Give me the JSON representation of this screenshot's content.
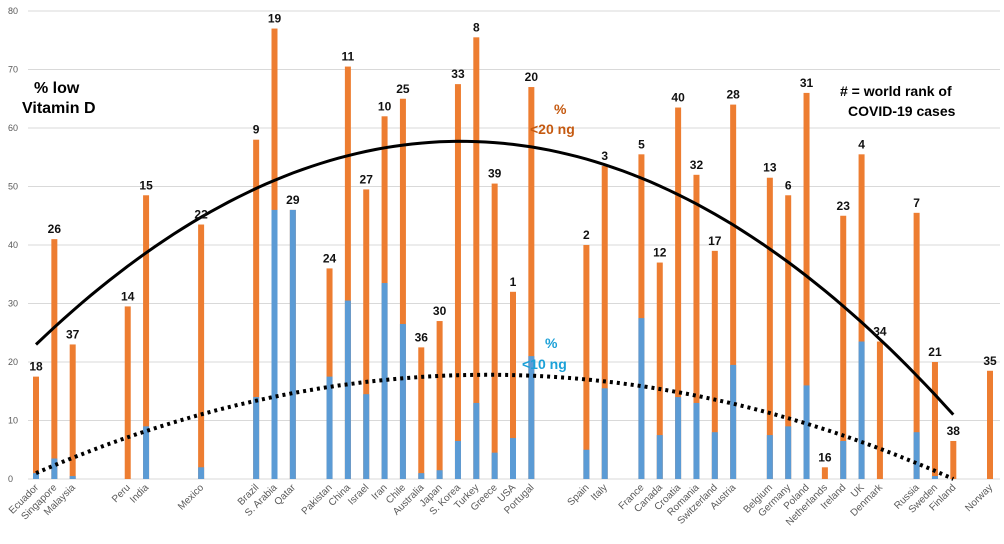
{
  "chart_data": {
    "type": "bar",
    "ylim": [
      0,
      80
    ],
    "yticks": [
      0,
      10,
      20,
      30,
      40,
      50,
      60,
      70,
      80
    ],
    "grid": "horizontal",
    "colors": {
      "low20": "#ED7D31",
      "low10": "#5B9BD5",
      "grid": "#D9D9D9",
      "trend": "#000000"
    },
    "annotations": {
      "ylabel_line1": "% low",
      "ylabel_line2": "Vitamin D",
      "rank_note_line1": "# = world rank of",
      "rank_note_line2": "COVID-19 cases",
      "series20_line1": "%",
      "series20_line2": "<20 ng",
      "series10_line1": "%",
      "series10_line2": "<10 ng"
    },
    "trend_20": {
      "x": [
        0,
        50,
        100
      ],
      "y": [
        23,
        57.5,
        11
      ]
    },
    "trend_10": {
      "x": [
        0,
        48,
        100
      ],
      "y": [
        1,
        17.8,
        0
      ]
    },
    "countries": [
      {
        "name": "Ecuador",
        "x": 0,
        "low20": 17.5,
        "low10": 1,
        "rank": "18"
      },
      {
        "name": "Singapore",
        "x": 2,
        "low20": 41,
        "low10": 3.5,
        "rank": "26"
      },
      {
        "name": "Malaysia",
        "x": 4,
        "low20": 23,
        "low10": 0.5,
        "rank": "37"
      },
      {
        "name": "Peru",
        "x": 10,
        "low20": 29.5,
        "low10": 0,
        "rank": "14"
      },
      {
        "name": "India",
        "x": 12,
        "low20": 48.5,
        "low10": 9,
        "rank": "15"
      },
      {
        "name": "Mexico",
        "x": 18,
        "low20": 43.5,
        "low10": 2,
        "rank": "22"
      },
      {
        "name": "Brazil",
        "x": 24,
        "low20": 58,
        "low10": 14,
        "rank": "9"
      },
      {
        "name": "S. Arabia",
        "x": 26,
        "low20": 77,
        "low10": 46,
        "rank": "19"
      },
      {
        "name": "Qatar",
        "x": 28,
        "low20": 46,
        "low10": 46,
        "rank": "29"
      },
      {
        "name": "Pakistan",
        "x": 32,
        "low20": 36,
        "low10": 17.5,
        "rank": "24"
      },
      {
        "name": "China",
        "x": 34,
        "low20": 70.5,
        "low10": 30.5,
        "rank": "11"
      },
      {
        "name": "Israel",
        "x": 36,
        "low20": 49.5,
        "low10": 14.5,
        "rank": "27"
      },
      {
        "name": "Iran",
        "x": 38,
        "low20": 62,
        "low10": 33.5,
        "rank": "10"
      },
      {
        "name": "Chile",
        "x": 40,
        "low20": 65,
        "low10": 26.5,
        "rank": "25"
      },
      {
        "name": "Australia",
        "x": 42,
        "low20": 22.5,
        "low10": 1,
        "rank": "36"
      },
      {
        "name": "Japan",
        "x": 44,
        "low20": 27,
        "low10": 1.5,
        "rank": "30"
      },
      {
        "name": "S. Korea",
        "x": 46,
        "low20": 67.5,
        "low10": 6.5,
        "rank": "33"
      },
      {
        "name": "Turkey",
        "x": 48,
        "low20": 75.5,
        "low10": 13,
        "rank": "8"
      },
      {
        "name": "Greece",
        "x": 50,
        "low20": 50.5,
        "low10": 4.5,
        "rank": "39"
      },
      {
        "name": "USA",
        "x": 52,
        "low20": 32,
        "low10": 7,
        "rank": "1"
      },
      {
        "name": "Portugal",
        "x": 54,
        "low20": 67,
        "low10": 21,
        "rank": "20"
      },
      {
        "name": "Spain",
        "x": 60,
        "low20": 40,
        "low10": 5,
        "rank": "2"
      },
      {
        "name": "Italy",
        "x": 62,
        "low20": 53.5,
        "low10": 15.5,
        "rank": "3"
      },
      {
        "name": "France",
        "x": 66,
        "low20": 55.5,
        "low10": 27.5,
        "rank": "5"
      },
      {
        "name": "Canada",
        "x": 68,
        "low20": 37,
        "low10": 7.5,
        "rank": "12"
      },
      {
        "name": "Croatia",
        "x": 70,
        "low20": 63.5,
        "low10": 14,
        "rank": "40"
      },
      {
        "name": "Romania",
        "x": 72,
        "low20": 52,
        "low10": 13,
        "rank": "32"
      },
      {
        "name": "Switzerland",
        "x": 74,
        "low20": 39,
        "low10": 8,
        "rank": "17"
      },
      {
        "name": "Austria",
        "x": 76,
        "low20": 64,
        "low10": 19.5,
        "rank": "28"
      },
      {
        "name": "Belgium",
        "x": 80,
        "low20": 51.5,
        "low10": 7.5,
        "rank": "13"
      },
      {
        "name": "Germany",
        "x": 82,
        "low20": 48.5,
        "low10": 9,
        "rank": "6"
      },
      {
        "name": "Poland",
        "x": 84,
        "low20": 66,
        "low10": 16,
        "rank": "31"
      },
      {
        "name": "Netherlands",
        "x": 86,
        "low20": 2,
        "low10": 0,
        "rank": "16"
      },
      {
        "name": "Ireland",
        "x": 88,
        "low20": 45,
        "low10": 6.5,
        "rank": "23"
      },
      {
        "name": "UK",
        "x": 90,
        "low20": 55.5,
        "low10": 23.5,
        "rank": "4"
      },
      {
        "name": "Denmark",
        "x": 92,
        "low20": 23.5,
        "low10": 0,
        "rank": "34"
      },
      {
        "name": "Russia",
        "x": 96,
        "low20": 45.5,
        "low10": 8,
        "rank": "7"
      },
      {
        "name": "Sweden",
        "x": 98,
        "low20": 20,
        "low10": 0.5,
        "rank": "21"
      },
      {
        "name": "Finland",
        "x": 100,
        "low20": 6.5,
        "low10": 0,
        "rank": "38"
      },
      {
        "name": "Norway",
        "x": 104,
        "low20": 18.5,
        "low10": 0,
        "rank": "35"
      }
    ]
  }
}
